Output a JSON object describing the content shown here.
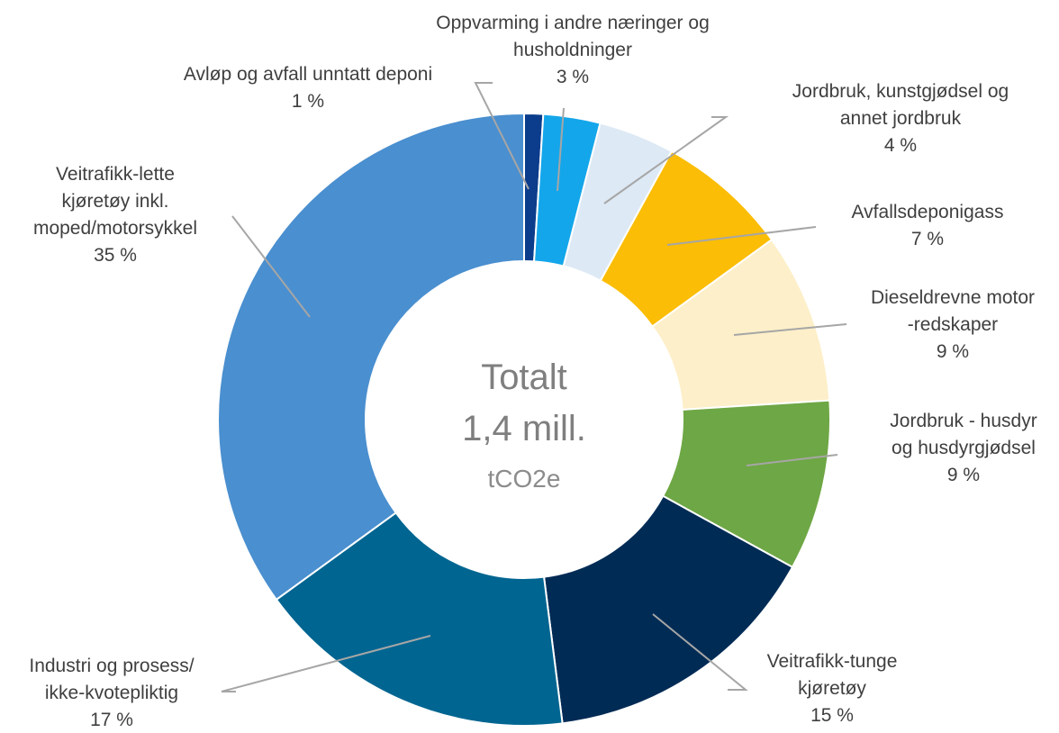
{
  "chart_data": {
    "type": "pie",
    "donut": true,
    "center_text": [
      "Totalt",
      "1,4 mill.",
      "tCO2e"
    ],
    "slices": [
      {
        "name": "Avløp og avfall unntatt deponi",
        "label_lines": [
          "Avløp og avfall unntatt deponi",
          "1 %"
        ],
        "value": 1,
        "color": "#0b3d8c"
      },
      {
        "name": "Oppvarming i andre næringer og husholdninger",
        "label_lines": [
          "Oppvarming i andre næringer og",
          "husholdninger",
          "3 %"
        ],
        "value": 3,
        "color": "#14a6ea"
      },
      {
        "name": "Jordbruk, kunstgjødsel og annet jordbruk",
        "label_lines": [
          "Jordbruk, kunstgjødsel og",
          "annet jordbruk",
          "4 %"
        ],
        "value": 4,
        "color": "#dde9f5"
      },
      {
        "name": "Avfallsdeponigass",
        "label_lines": [
          "Avfallsdeponigass",
          "7 %"
        ],
        "value": 7,
        "color": "#fbbd05"
      },
      {
        "name": "Dieseldrevne motorredskaper",
        "label_lines": [
          "Dieseldrevne motor",
          "-redskaper",
          "9 %"
        ],
        "value": 9,
        "color": "#fdefc9"
      },
      {
        "name": "Jordbruk - husdyr og husdyrgjødsel",
        "label_lines": [
          "Jordbruk - husdyr",
          "og husdyrgjødsel",
          "9 %"
        ],
        "value": 9,
        "color": "#6ea745"
      },
      {
        "name": "Veitrafikk-tunge kjøretøy",
        "label_lines": [
          "Veitrafikk-tunge",
          "kjøretøy",
          "15 %"
        ],
        "value": 15,
        "color": "#002b55"
      },
      {
        "name": "Industri og prosess/ikke-kvotepliktig",
        "label_lines": [
          "Industri og prosess/",
          "ikke-kvotepliktig",
          "17 %"
        ],
        "value": 17,
        "color": "#006591"
      },
      {
        "name": "Veitrafikk-lette kjøretøy inkl. moped/motorsykkel",
        "label_lines": [
          "Veitrafikk-lette",
          "kjøretøy inkl.",
          "moped/motorsykkel",
          "35 %"
        ],
        "value": 35,
        "color": "#4a8fcf"
      }
    ]
  }
}
